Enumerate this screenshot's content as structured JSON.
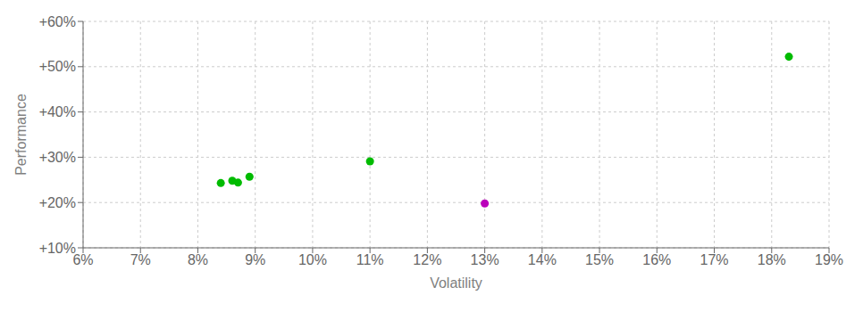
{
  "chart_data": {
    "type": "scatter",
    "xlabel": "Volatility",
    "ylabel": "Performance",
    "xlim": [
      0.06,
      0.19
    ],
    "ylim": [
      0.1,
      0.6
    ],
    "xticks": [
      {
        "value": 0.06,
        "label": "6%"
      },
      {
        "value": 0.07,
        "label": "7%"
      },
      {
        "value": 0.08,
        "label": "8%"
      },
      {
        "value": 0.09,
        "label": "9%"
      },
      {
        "value": 0.1,
        "label": "10%"
      },
      {
        "value": 0.11,
        "label": "11%"
      },
      {
        "value": 0.12,
        "label": "12%"
      },
      {
        "value": 0.13,
        "label": "13%"
      },
      {
        "value": 0.14,
        "label": "14%"
      },
      {
        "value": 0.15,
        "label": "15%"
      },
      {
        "value": 0.16,
        "label": "16%"
      },
      {
        "value": 0.17,
        "label": "17%"
      },
      {
        "value": 0.18,
        "label": "18%"
      },
      {
        "value": 0.19,
        "label": "19%"
      }
    ],
    "yticks": [
      {
        "value": 0.1,
        "label": "+10%"
      },
      {
        "value": 0.2,
        "label": "+20%"
      },
      {
        "value": 0.3,
        "label": "+30%"
      },
      {
        "value": 0.4,
        "label": "+40%"
      },
      {
        "value": 0.5,
        "label": "+50%"
      },
      {
        "value": 0.6,
        "label": "+60%"
      }
    ],
    "grid": true,
    "series": [
      {
        "color": "#00bb00",
        "x": [
          0.084,
          0.086,
          0.087,
          0.089,
          0.11,
          0.183
        ],
        "y": [
          0.243,
          0.248,
          0.244,
          0.257,
          0.291,
          0.522
        ]
      },
      {
        "color": "#bb00bb",
        "x": [
          0.13
        ],
        "y": [
          0.198
        ]
      }
    ]
  }
}
